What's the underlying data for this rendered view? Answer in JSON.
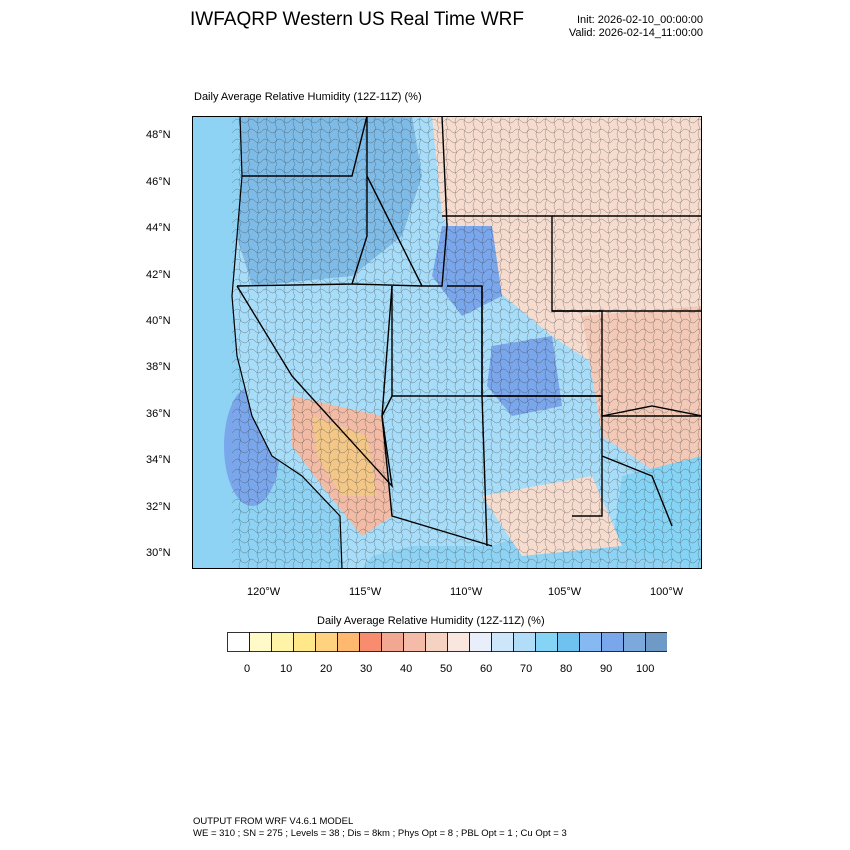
{
  "header": {
    "title": "IWFAQRP Western US Real Time WRF",
    "init": "Init: 2026-02-10_00:00:00",
    "valid": "Valid: 2026-02-14_11:00:00"
  },
  "map": {
    "subtitle": "Daily Average Relative Humidity (12Z-11Z)   (%)",
    "lat_labels": [
      "48°N",
      "46°N",
      "44°N",
      "42°N",
      "40°N",
      "38°N",
      "36°N",
      "34°N",
      "32°N",
      "30°N"
    ],
    "lon_labels": [
      "120°W",
      "115°W",
      "110°W",
      "105°W",
      "100°W"
    ],
    "ocean_color": "#8fd3f4",
    "land_mix": [
      "#7ebbe6",
      "#a7ddf8",
      "#dbe9f7",
      "#f6dccf",
      "#f1bba6",
      "#f3c788"
    ]
  },
  "colorbar": {
    "title": "Daily Average Relative Humidity (12Z-11Z)  (%)",
    "colors": [
      "#ffffff",
      "#fffac8",
      "#fff3a8",
      "#ffe88a",
      "#ffd280",
      "#ffb870",
      "#f78d6e",
      "#f1a792",
      "#f3bba8",
      "#f6d2c2",
      "#f9e6df",
      "#e8eefa",
      "#cde6fa",
      "#b2ddf8",
      "#86d4f5",
      "#6fc2ef",
      "#86b8f2",
      "#7aa6eb",
      "#7ba9dc",
      "#6f9ac8"
    ],
    "tick_labels": [
      "0",
      "10",
      "20",
      "30",
      "40",
      "50",
      "60",
      "70",
      "80",
      "90",
      "100"
    ]
  },
  "footer": {
    "line1": "OUTPUT FROM WRF V4.6.1 MODEL",
    "line2": "WE = 310 ; SN = 275 ; Levels = 38 ; Dis = 8km ; Phys Opt = 8 ; PBL Opt = 1 ; Cu Opt = 3"
  }
}
